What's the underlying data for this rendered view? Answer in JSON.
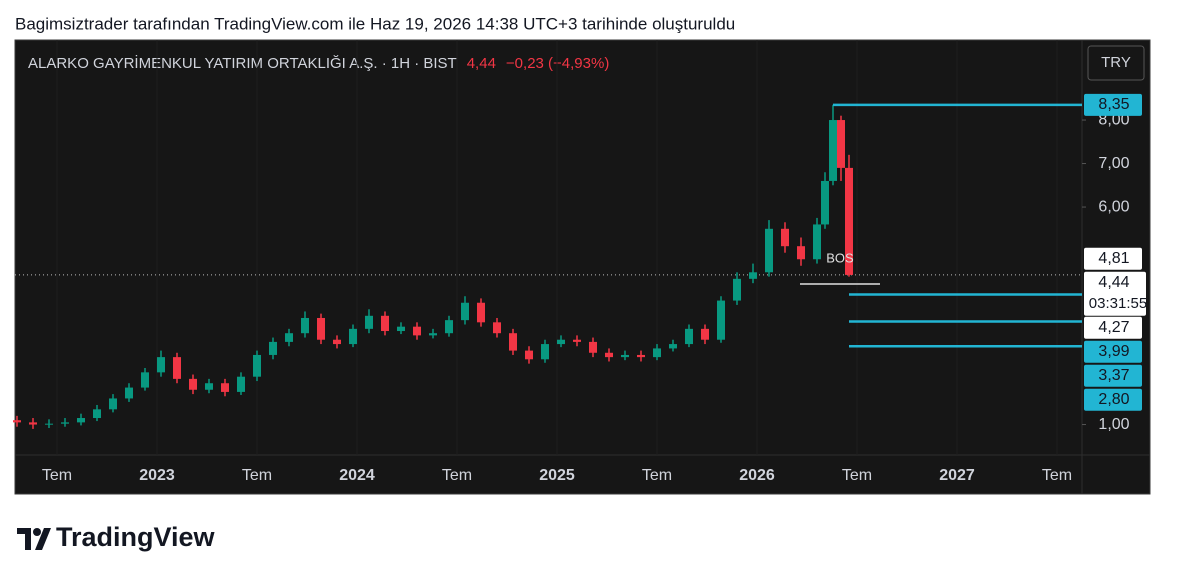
{
  "header": {
    "credit": "Bagimsiztrader tarafından TradingView.com ile Haz 19, 2026 14:38 UTC+3 tarihinde oluşturuldu"
  },
  "logo": {
    "text": "TradingView"
  },
  "chart_data": {
    "type": "candlestick",
    "legend": {
      "symbol": "ALARKO GAYRİMENKUL YATIRIM ORTAKLIĞI A.Ş. · 1H · BIST",
      "last": "4,44",
      "change": "−0,23 (−4,93%)"
    },
    "currency": "TRY",
    "up_color": "#089981",
    "down_color": "#f23645",
    "level_color": "#22b5d3",
    "xlim": [
      2022.29,
      2027.625
    ],
    "ylim": [
      0.3,
      9.84
    ],
    "xticks": [
      {
        "value": 2022.5,
        "label": "Tem"
      },
      2023,
      {
        "value": 2023.5,
        "label": "Tem"
      },
      2024,
      {
        "value": 2024.5,
        "label": "Tem"
      },
      2025,
      {
        "value": 2025.5,
        "label": "Tem"
      },
      2026,
      {
        "value": 2026.5,
        "label": "Tem"
      },
      2027,
      {
        "value": 2027.5,
        "label": "Tem"
      }
    ],
    "yticks": [
      {
        "value": 1,
        "label": "1,00"
      },
      {
        "value": 6,
        "label": "6,00"
      },
      {
        "value": 7,
        "label": "7,00"
      },
      {
        "value": 8,
        "label": "8,00"
      }
    ],
    "x": [
      2022.3,
      2022.38,
      2022.46,
      2022.54,
      2022.62,
      2022.7,
      2022.78,
      2022.86,
      2022.94,
      2023.02,
      2023.1,
      2023.18,
      2023.26,
      2023.34,
      2023.42,
      2023.5,
      2023.58,
      2023.66,
      2023.74,
      2023.82,
      2023.9,
      2023.98,
      2024.06,
      2024.14,
      2024.22,
      2024.3,
      2024.38,
      2024.46,
      2024.54,
      2024.62,
      2024.7,
      2024.78,
      2024.86,
      2024.94,
      2025.02,
      2025.1,
      2025.18,
      2025.26,
      2025.34,
      2025.42,
      2025.5,
      2025.58,
      2025.66,
      2025.74,
      2025.82,
      2025.9,
      2025.98,
      2026.06,
      2026.14,
      2026.22,
      2026.3,
      2026.34,
      2026.38,
      2026.42,
      2026.46
    ],
    "open": [
      1.1,
      1.05,
      1.0,
      1.02,
      1.05,
      1.15,
      1.35,
      1.6,
      1.85,
      2.2,
      2.55,
      2.05,
      1.8,
      1.95,
      1.75,
      2.1,
      2.6,
      2.9,
      3.1,
      3.45,
      2.95,
      2.85,
      3.2,
      3.5,
      3.15,
      3.25,
      3.05,
      3.1,
      3.4,
      3.8,
      3.35,
      3.1,
      2.7,
      2.5,
      2.85,
      2.95,
      2.9,
      2.65,
      2.55,
      2.6,
      2.55,
      2.75,
      2.85,
      3.2,
      2.95,
      3.85,
      4.35,
      4.5,
      5.5,
      5.1,
      4.8,
      5.6,
      6.6,
      8.0,
      6.9
    ],
    "high": [
      1.2,
      1.15,
      1.12,
      1.15,
      1.25,
      1.45,
      1.7,
      1.95,
      2.3,
      2.7,
      2.65,
      2.15,
      2.05,
      2.05,
      2.2,
      2.7,
      3.0,
      3.2,
      3.6,
      3.55,
      3.05,
      3.3,
      3.65,
      3.6,
      3.35,
      3.35,
      3.2,
      3.5,
      3.95,
      3.9,
      3.45,
      3.2,
      2.8,
      2.95,
      3.05,
      3.05,
      3.0,
      2.75,
      2.7,
      2.7,
      2.85,
      2.95,
      3.3,
      3.3,
      3.95,
      4.5,
      4.7,
      5.7,
      5.65,
      5.3,
      5.75,
      6.8,
      8.35,
      8.1,
      7.2
    ],
    "low": [
      0.95,
      0.9,
      0.92,
      0.95,
      0.98,
      1.08,
      1.28,
      1.52,
      1.78,
      2.1,
      1.95,
      1.7,
      1.72,
      1.65,
      1.68,
      2.0,
      2.5,
      2.8,
      3.0,
      2.85,
      2.75,
      2.78,
      3.1,
      3.05,
      3.08,
      2.95,
      2.98,
      3.02,
      3.3,
      3.25,
      3.0,
      2.6,
      2.4,
      2.42,
      2.78,
      2.8,
      2.55,
      2.45,
      2.48,
      2.45,
      2.48,
      2.68,
      2.78,
      2.85,
      2.88,
      3.75,
      4.25,
      4.4,
      4.95,
      4.65,
      4.7,
      5.5,
      6.5,
      6.6,
      4.4
    ],
    "close": [
      1.05,
      1.0,
      1.02,
      1.05,
      1.15,
      1.35,
      1.6,
      1.85,
      2.2,
      2.55,
      2.05,
      1.8,
      1.95,
      1.75,
      2.1,
      2.6,
      2.9,
      3.1,
      3.45,
      2.95,
      2.85,
      3.2,
      3.5,
      3.15,
      3.25,
      3.05,
      3.1,
      3.4,
      3.8,
      3.35,
      3.1,
      2.7,
      2.5,
      2.85,
      2.95,
      2.9,
      2.65,
      2.55,
      2.6,
      2.55,
      2.75,
      2.85,
      3.2,
      2.95,
      3.85,
      4.35,
      4.5,
      5.5,
      5.1,
      4.8,
      5.6,
      6.6,
      8.0,
      6.9,
      4.44
    ],
    "last_price": 4.44,
    "price_labels": [
      {
        "value": 8.35,
        "label": "8,35",
        "style": "level",
        "from": 2026.38
      },
      {
        "value": 4.81,
        "label": "4,81",
        "style": "plain"
      },
      {
        "value": 4.44,
        "label": "4,44",
        "style": "last",
        "countdown": "03:31:55"
      },
      {
        "value": 4.27,
        "label": "4,27",
        "style": "plain"
      },
      {
        "value": 3.99,
        "label": "3,99",
        "style": "level",
        "from": 2026.46
      },
      {
        "value": 3.37,
        "label": "3,37",
        "style": "level",
        "from": 2026.46
      },
      {
        "value": 2.8,
        "label": "2,80",
        "style": "level",
        "from": 2026.46
      }
    ],
    "bos": {
      "label": "BOS",
      "level": 4.23,
      "from": 2026.215,
      "to": 2026.615
    }
  }
}
